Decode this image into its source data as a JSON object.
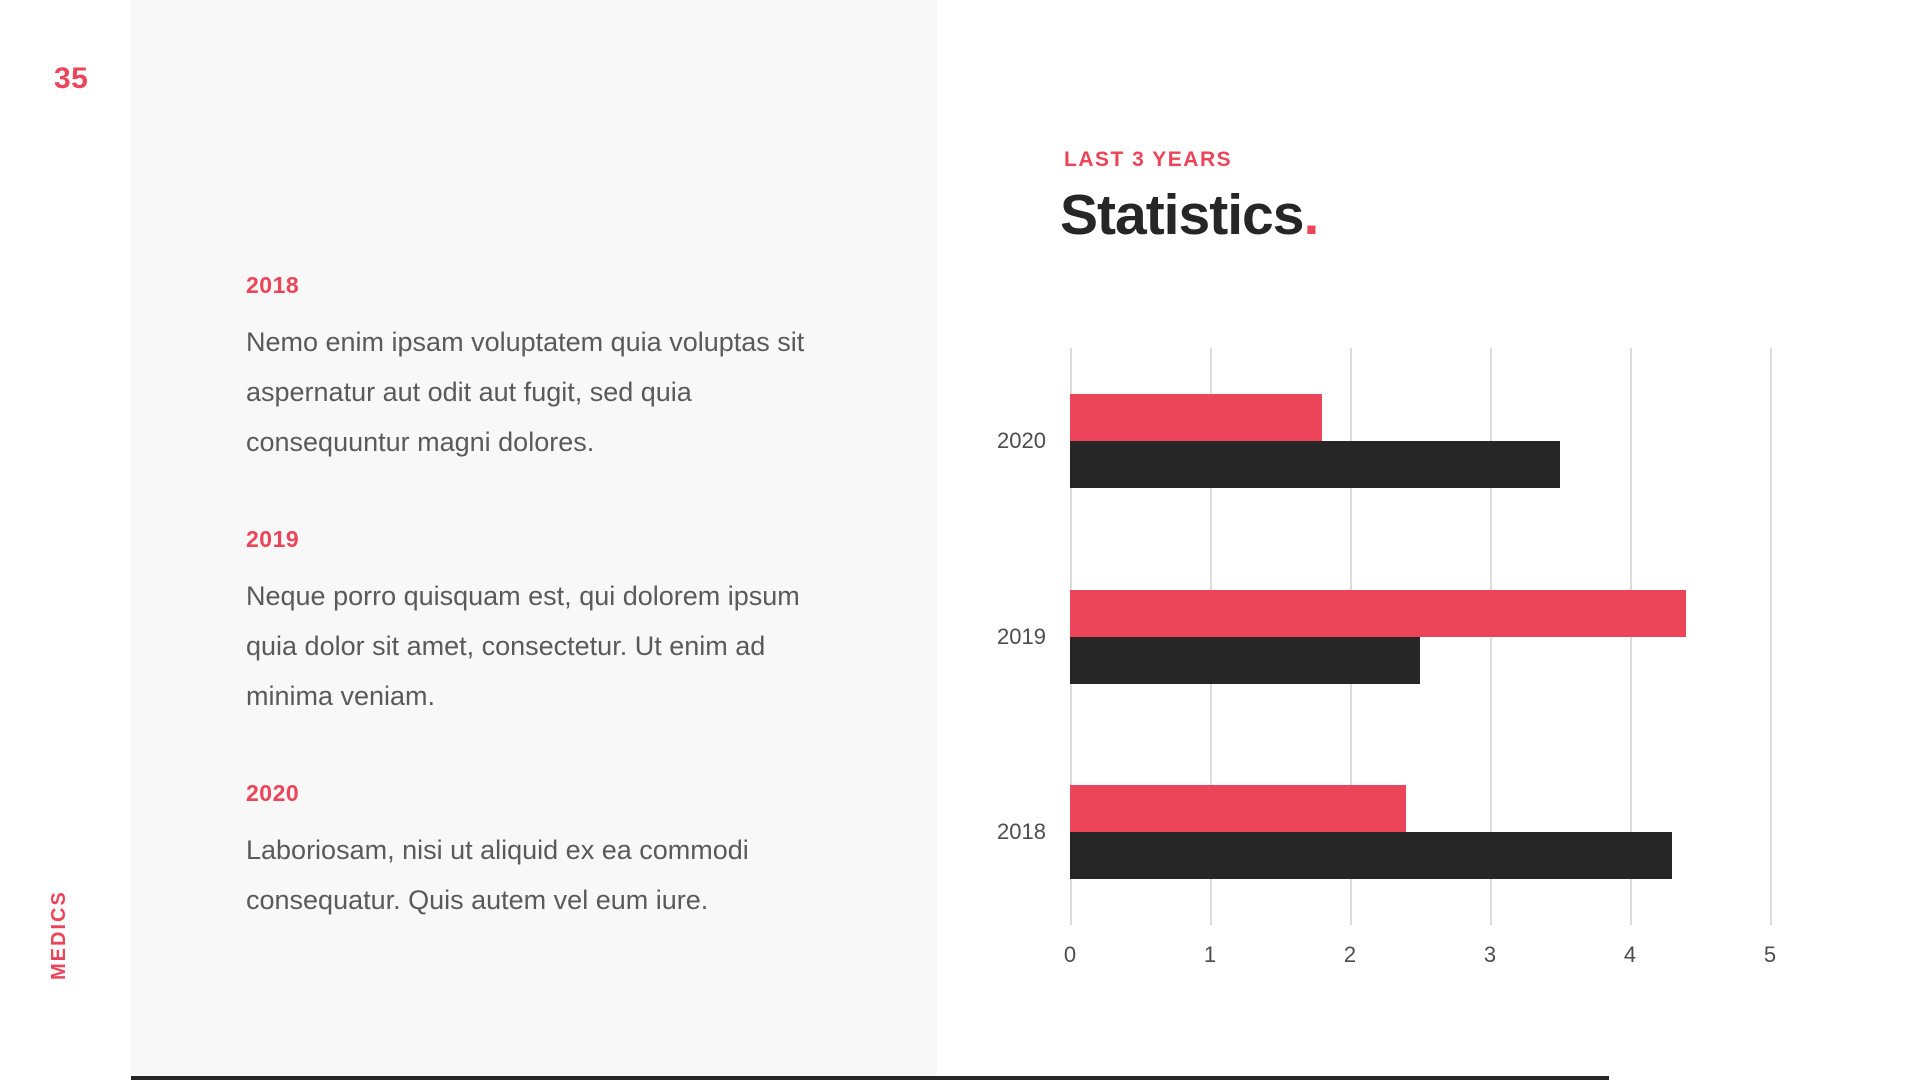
{
  "colors": {
    "accent": "#EC4458",
    "dark": "#262626",
    "panel_bg": "#F8F8F8",
    "body_text": "#5A5A5A",
    "axis_text": "#4D4D4D",
    "gridline": "#DCDCDC"
  },
  "page": {
    "number": "35",
    "brand": "MEDICS"
  },
  "timeline": [
    {
      "year": "2018",
      "lines": [
        "Nemo enim ipsam voluptatem quia voluptas sit",
        "aspernatur aut odit aut fugit, sed quia",
        "consequuntur magni dolores."
      ]
    },
    {
      "year": "2019",
      "lines": [
        "Neque porro quisquam est, qui dolorem ipsum",
        "quia dolor sit amet, consectetur. Ut enim ad",
        "minima veniam."
      ]
    },
    {
      "year": "2020",
      "lines": [
        "Laboriosam, nisi ut aliquid ex ea commodi",
        "consequatur. Quis autem vel eum iure."
      ]
    }
  ],
  "header": {
    "eyebrow": "LAST 3 YEARS",
    "title": "Statistics",
    "title_dot": "."
  },
  "chart_data": {
    "type": "bar",
    "orientation": "horizontal",
    "title": "Statistics",
    "subtitle": "LAST 3 YEARS",
    "categories": [
      "2020",
      "2019",
      "2018"
    ],
    "series": [
      {
        "name": "highlight",
        "color": "#EC4458",
        "values": [
          1.8,
          4.4,
          2.4
        ]
      },
      {
        "name": "base",
        "color": "#262626",
        "values": [
          3.5,
          2.5,
          4.3
        ]
      }
    ],
    "xlim": [
      0,
      5
    ],
    "x_ticks": [
      "0",
      "1",
      "2",
      "3",
      "4",
      "5"
    ],
    "xlabel": "",
    "ylabel": "",
    "grid": "vertical",
    "legend": "none"
  }
}
